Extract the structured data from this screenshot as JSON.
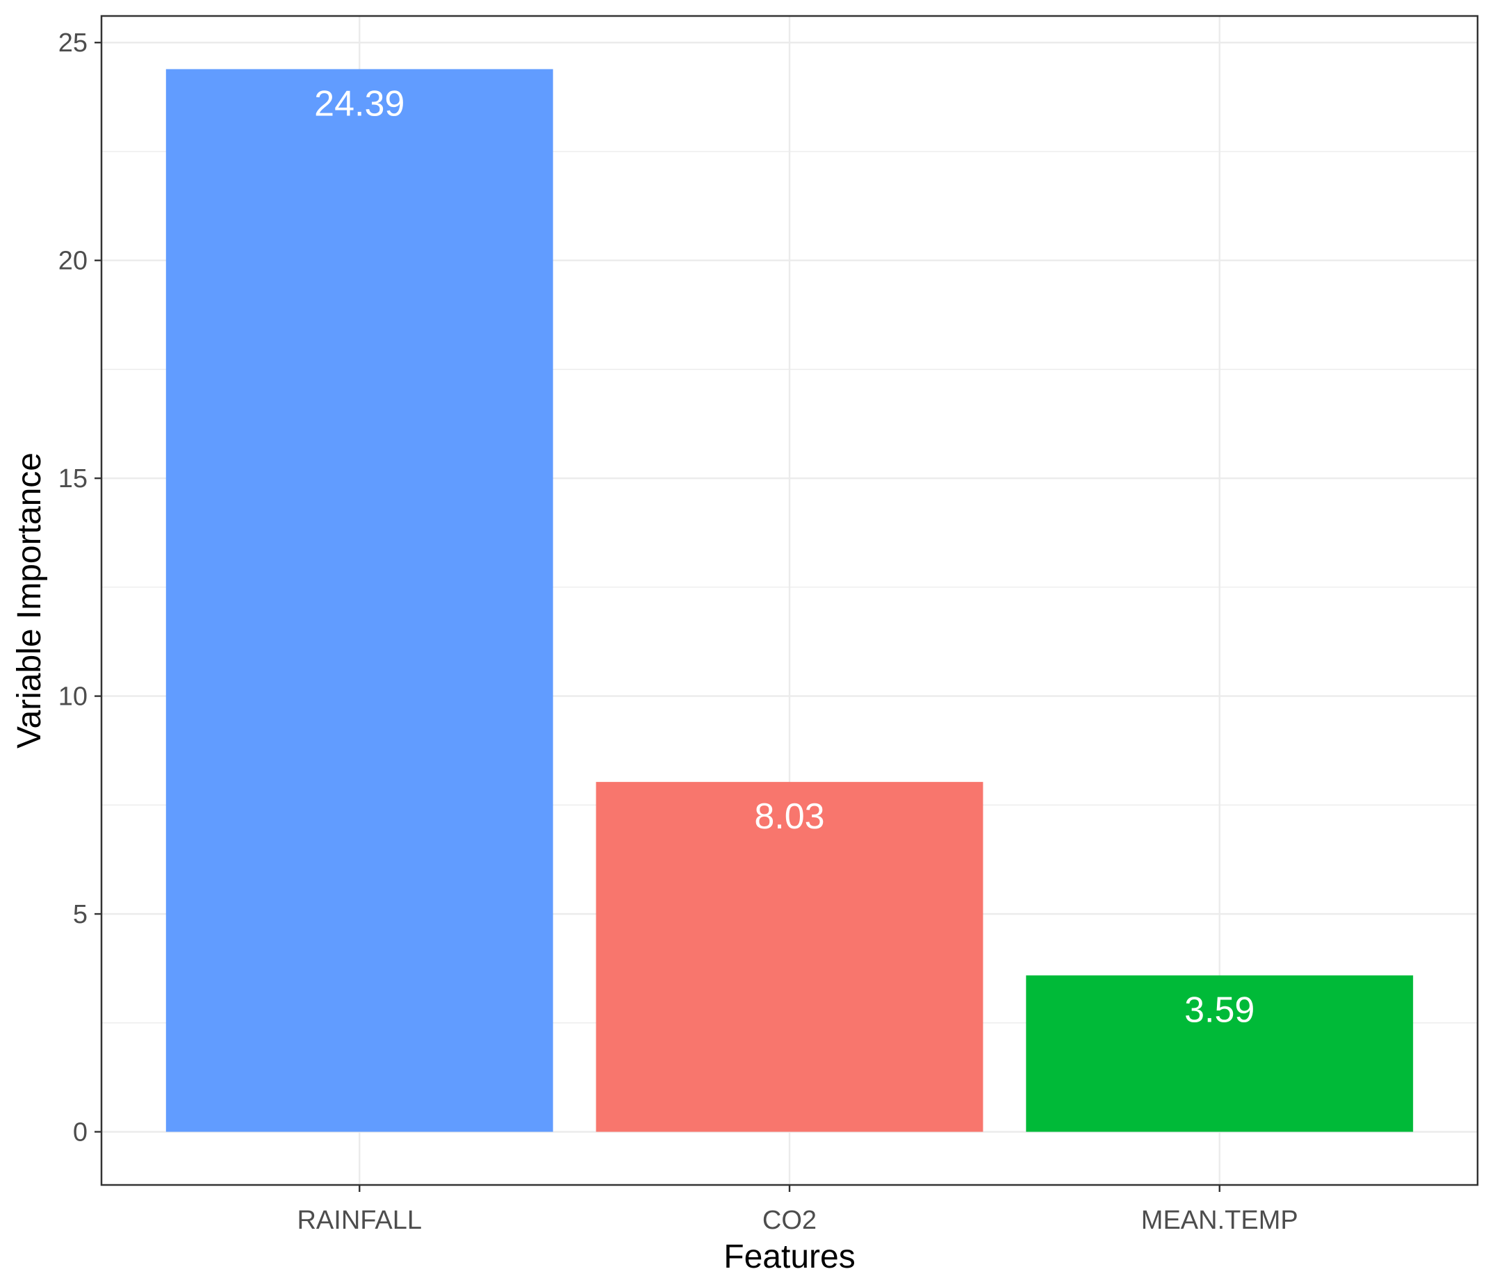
{
  "chart_data": {
    "type": "bar",
    "categories": [
      "RAINFALL",
      "CO2",
      "MEAN.TEMP"
    ],
    "values": [
      24.39,
      8.03,
      3.59
    ],
    "value_labels": [
      "24.39",
      "8.03",
      "3.59"
    ],
    "colors": [
      "#619CFF",
      "#F8766D",
      "#00BA38"
    ],
    "xlabel": "Features",
    "ylabel": "Variable Importance",
    "ylim": [
      -1.22,
      25.61
    ],
    "yticks": [
      0,
      5,
      10,
      15,
      20,
      25
    ],
    "ytick_labels": [
      "0",
      "5",
      "10",
      "15",
      "20",
      "25"
    ],
    "grid": true,
    "legend": "none"
  }
}
